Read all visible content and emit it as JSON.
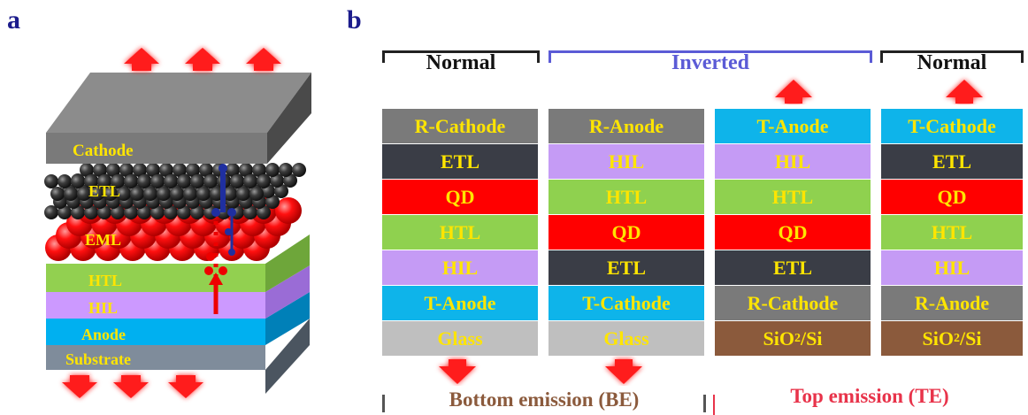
{
  "panels": {
    "a": "a",
    "b": "b"
  },
  "panel_a": {
    "layers": [
      {
        "label": "Cathode",
        "color": "#7f7f7f"
      },
      {
        "label": "ETL",
        "color": "#3a3a3a"
      },
      {
        "label": "EML",
        "color": "#ff0000"
      },
      {
        "label": "HTL",
        "color": "#92d050"
      },
      {
        "label": "HIL",
        "color": "#cc99ff"
      },
      {
        "label": "Anode",
        "color": "#00b0f0"
      },
      {
        "label": "Substrate",
        "color": "#7f8c9b"
      }
    ]
  },
  "panel_b": {
    "groups": [
      {
        "label": "Normal",
        "style": "black"
      },
      {
        "label": "Inverted",
        "style": "blue"
      },
      {
        "label": "Normal",
        "style": "black"
      }
    ],
    "stacks": [
      {
        "emission": "down",
        "layers": [
          {
            "label": "R-Cathode",
            "color": "#7a7a7a"
          },
          {
            "label": "ETL",
            "color": "#3a3d46"
          },
          {
            "label": "QD",
            "color": "#ff0000"
          },
          {
            "label": "HTL",
            "color": "#8fd14f"
          },
          {
            "label": "HIL",
            "color": "#c59bf5"
          },
          {
            "label": "T-Anode",
            "color": "#0eb4ea"
          },
          {
            "label": "Glass",
            "color": "#bfbfbf"
          }
        ]
      },
      {
        "emission": "down",
        "layers": [
          {
            "label": "R-Anode",
            "color": "#7a7a7a"
          },
          {
            "label": "HIL",
            "color": "#c59bf5"
          },
          {
            "label": "HTL",
            "color": "#8fd14f"
          },
          {
            "label": "QD",
            "color": "#ff0000"
          },
          {
            "label": "ETL",
            "color": "#3a3d46"
          },
          {
            "label": "T-Cathode",
            "color": "#0eb4ea"
          },
          {
            "label": "Glass",
            "color": "#bfbfbf"
          }
        ]
      },
      {
        "emission": "up",
        "layers": [
          {
            "label": "T-Anode",
            "color": "#0eb4ea"
          },
          {
            "label": "HIL",
            "color": "#c59bf5"
          },
          {
            "label": "HTL",
            "color": "#8fd14f"
          },
          {
            "label": "QD",
            "color": "#ff0000"
          },
          {
            "label": "ETL",
            "color": "#3a3d46"
          },
          {
            "label": "R-Cathode",
            "color": "#7a7a7a"
          },
          {
            "label": "SiO2/Si",
            "color": "#8b5a3c"
          }
        ]
      },
      {
        "emission": "up",
        "layers": [
          {
            "label": "T-Cathode",
            "color": "#0eb4ea"
          },
          {
            "label": "ETL",
            "color": "#3a3d46"
          },
          {
            "label": "QD",
            "color": "#ff0000"
          },
          {
            "label": "HTL",
            "color": "#8fd14f"
          },
          {
            "label": "HIL",
            "color": "#c59bf5"
          },
          {
            "label": "R-Anode",
            "color": "#7a7a7a"
          },
          {
            "label": "SiO2/Si",
            "color": "#8b5a3c"
          }
        ]
      }
    ],
    "bottom_emission_label": "Bottom emission (BE)",
    "top_emission_label": "Top emission (TE)",
    "bottom_color": "#8b5a3c",
    "top_color": "#e8334a"
  }
}
